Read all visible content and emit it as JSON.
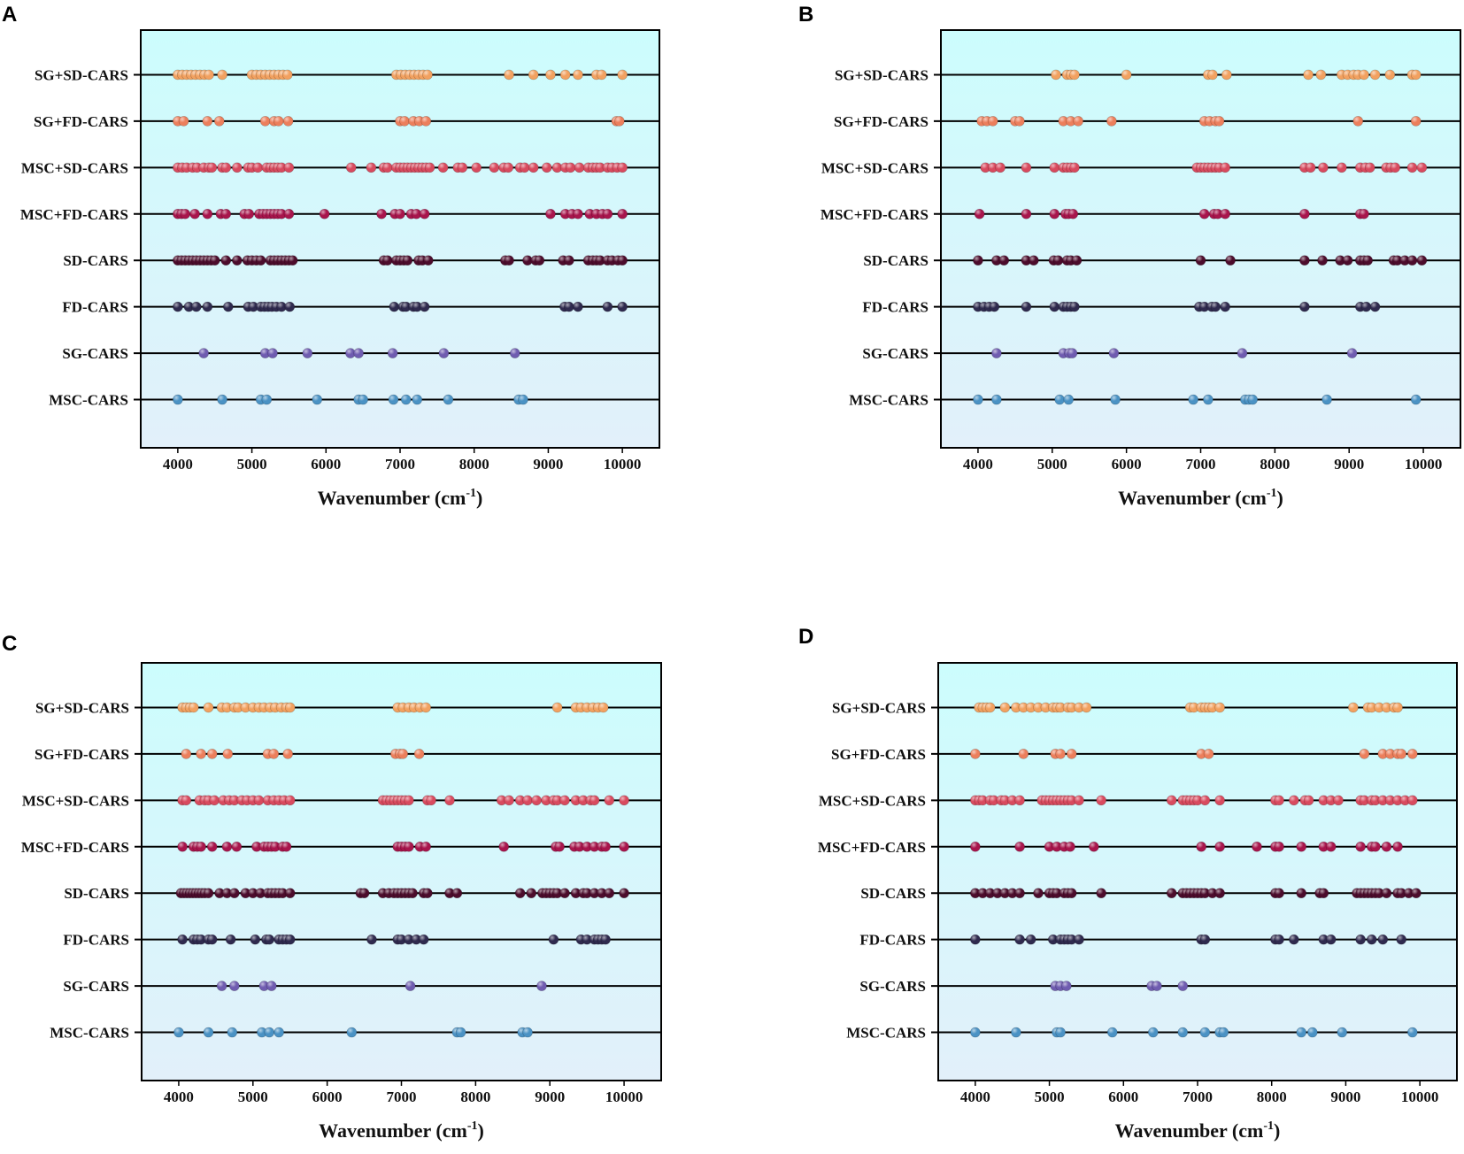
{
  "chart_data": {
    "type": "scatter",
    "xlabel": "Wavenumber (cm-1)",
    "xlabel_main": "Wavenumber (cm",
    "xlabel_sup": "-1",
    "xlabel_close": ")",
    "xlim": [
      3500,
      10500
    ],
    "xticks": [
      "4000",
      "5000",
      "6000",
      "7000",
      "8000",
      "9000",
      "10000"
    ],
    "rows": [
      "SG+SD-CARS",
      "SG+FD-CARS",
      "MSC+SD-CARS",
      "MSC+FD-CARS",
      "SD-CARS",
      "FD-CARS",
      "SG-CARS",
      "MSC-CARS"
    ],
    "colors": [
      "#f2a160",
      "#ec7f5c",
      "#d84a5e",
      "#a8154c",
      "#4c0c2c",
      "#2f2a4e",
      "#6f5cb0",
      "#4a92c4"
    ],
    "background": {
      "top": "#ccfdfd",
      "bottom": "#e2f0fa"
    },
    "panels": [
      {
        "label": "A",
        "series": [
          [
            4000,
            4060,
            4120,
            4180,
            4240,
            4300,
            4360,
            4420,
            4600,
            5000,
            5060,
            5120,
            5180,
            5240,
            5300,
            5360,
            5420,
            5480,
            6950,
            7010,
            7070,
            7130,
            7190,
            7250,
            7310,
            7370,
            8470,
            8800,
            9030,
            9230,
            9400,
            9650,
            9720,
            10000
          ],
          [
            4000,
            4080,
            4400,
            4560,
            5180,
            5300,
            5360,
            5490,
            7000,
            7060,
            7180,
            7260,
            7350,
            9920,
            9960
          ],
          [
            4000,
            4060,
            4120,
            4200,
            4260,
            4350,
            4420,
            4460,
            4600,
            4650,
            4800,
            4950,
            5000,
            5080,
            5200,
            5250,
            5300,
            5350,
            5400,
            5500,
            6340,
            6610,
            6780,
            6830,
            6950,
            7000,
            7050,
            7100,
            7150,
            7200,
            7250,
            7300,
            7350,
            7400,
            7580,
            7780,
            7840,
            8030,
            8270,
            8400,
            8460,
            8620,
            8680,
            8800,
            8980,
            9120,
            9230,
            9300,
            9420,
            9540,
            9600,
            9650,
            9700,
            9800,
            9860,
            9930,
            10000
          ],
          [
            4000,
            4050,
            4100,
            4230,
            4400,
            4580,
            4650,
            4900,
            4960,
            5100,
            5150,
            5200,
            5250,
            5300,
            5350,
            5400,
            5500,
            5980,
            6750,
            6930,
            7000,
            7150,
            7220,
            7330,
            9030,
            9230,
            9320,
            9400,
            9560,
            9650,
            9730,
            9800,
            10000
          ],
          [
            4000,
            4050,
            4100,
            4150,
            4200,
            4250,
            4300,
            4350,
            4400,
            4450,
            4500,
            4650,
            4800,
            4940,
            5000,
            5060,
            5120,
            5250,
            5300,
            5350,
            5400,
            5450,
            5500,
            5550,
            6780,
            6830,
            6950,
            7000,
            7050,
            7100,
            7250,
            7300,
            7380,
            8420,
            8470,
            8720,
            8830,
            8880,
            9200,
            9280,
            9540,
            9600,
            9650,
            9700,
            9800,
            9860,
            9940,
            10000
          ],
          [
            4000,
            4150,
            4250,
            4400,
            4680,
            4950,
            5020,
            5120,
            5170,
            5220,
            5270,
            5330,
            5400,
            5510,
            6920,
            7040,
            7080,
            7180,
            7230,
            7330,
            9220,
            9280,
            9400,
            9800,
            10000
          ],
          [
            4350,
            5180,
            5280,
            5750,
            6330,
            6440,
            6900,
            7590,
            8550
          ],
          [
            4000,
            4600,
            5120,
            5200,
            5880,
            6440,
            6500,
            6910,
            7080,
            7230,
            7650,
            8600,
            8660
          ]
        ]
      },
      {
        "label": "B",
        "series": [
          [
            5050,
            5200,
            5250,
            5300,
            6000,
            7100,
            7160,
            7350,
            8450,
            8620,
            8900,
            8980,
            9060,
            9120,
            9200,
            9350,
            9550,
            9850,
            9900
          ],
          [
            4050,
            4120,
            4200,
            4500,
            4560,
            5150,
            5250,
            5350,
            5800,
            7050,
            7120,
            7200,
            7250,
            9120,
            9900
          ],
          [
            4100,
            4200,
            4300,
            4650,
            5030,
            5150,
            5200,
            5250,
            5300,
            6950,
            7000,
            7050,
            7100,
            7150,
            7200,
            7250,
            7330,
            8400,
            8480,
            8650,
            8900,
            9150,
            9220,
            9280,
            9500,
            9560,
            9620,
            9850,
            9980
          ],
          [
            4020,
            4650,
            5030,
            5180,
            5220,
            5280,
            7050,
            7180,
            7230,
            7330,
            8400,
            9150,
            9200
          ],
          [
            4000,
            4250,
            4350,
            4650,
            4750,
            5020,
            5080,
            5200,
            5250,
            5330,
            7000,
            7400,
            8400,
            8640,
            8880,
            8980,
            9150,
            9200,
            9250,
            9600,
            9650,
            9750,
            9850,
            9980
          ],
          [
            4000,
            4080,
            4150,
            4220,
            4650,
            5030,
            5150,
            5200,
            5250,
            5300,
            6980,
            7050,
            7150,
            7200,
            7330,
            8400,
            9150,
            9230,
            9350
          ],
          [
            4250,
            5150,
            5230,
            5270,
            5830,
            7560,
            9040
          ],
          [
            4000,
            4250,
            5100,
            5220,
            5850,
            6900,
            7100,
            7600,
            7650,
            7700,
            8700,
            9900
          ]
        ]
      },
      {
        "label": "C",
        "series": [
          [
            4050,
            4100,
            4150,
            4200,
            4400,
            4580,
            4650,
            4750,
            4800,
            4900,
            5000,
            5080,
            5150,
            5230,
            5300,
            5380,
            5450,
            5500,
            6950,
            7020,
            7100,
            7170,
            7250,
            7330,
            9100,
            9350,
            9420,
            9500,
            9580,
            9650,
            9720
          ],
          [
            4100,
            4300,
            4450,
            4660,
            5200,
            5280,
            5470,
            6920,
            6980,
            7020,
            7240
          ],
          [
            4050,
            4100,
            4280,
            4350,
            4400,
            4480,
            4600,
            4680,
            4750,
            4850,
            4920,
            5000,
            5080,
            5200,
            5280,
            5350,
            5420,
            5500,
            6750,
            6800,
            6850,
            6900,
            6950,
            7000,
            7050,
            7100,
            7350,
            7400,
            7650,
            8350,
            8450,
            8600,
            8700,
            8820,
            8950,
            9050,
            9100,
            9200,
            9350,
            9450,
            9550,
            9600,
            9800,
            10000
          ],
          [
            4050,
            4200,
            4250,
            4300,
            4450,
            4650,
            4780,
            5050,
            5150,
            5200,
            5250,
            5300,
            5400,
            5450,
            6950,
            7000,
            7050,
            7100,
            7250,
            7330,
            8380,
            9080,
            9130,
            9330,
            9400,
            9500,
            9600,
            9700,
            9750,
            10000
          ],
          [
            4030,
            4070,
            4110,
            4150,
            4190,
            4230,
            4270,
            4310,
            4350,
            4400,
            4550,
            4650,
            4750,
            4900,
            5000,
            5100,
            5200,
            5250,
            5300,
            5350,
            5400,
            5500,
            6450,
            6500,
            6750,
            6830,
            6900,
            6950,
            7000,
            7050,
            7100,
            7150,
            7300,
            7350,
            7650,
            7750,
            8600,
            8750,
            8900,
            8950,
            9000,
            9050,
            9100,
            9200,
            9350,
            9450,
            9500,
            9600,
            9700,
            9800,
            10000
          ],
          [
            4050,
            4200,
            4250,
            4300,
            4400,
            4450,
            4700,
            5030,
            5180,
            5220,
            5350,
            5400,
            5450,
            5500,
            6600,
            6950,
            7000,
            7100,
            7200,
            7300,
            9050,
            9420,
            9500,
            9600,
            9650,
            9700,
            9750
          ],
          [
            4580,
            4750,
            5150,
            5250,
            7120,
            8890
          ],
          [
            4000,
            4400,
            4720,
            5120,
            5220,
            5350,
            6330,
            7750,
            7800,
            8630,
            8700
          ]
        ]
      },
      {
        "label": "D",
        "series": [
          [
            4050,
            4100,
            4150,
            4200,
            4400,
            4550,
            4650,
            4750,
            4850,
            4950,
            5050,
            5100,
            5150,
            5250,
            5300,
            5400,
            5500,
            6900,
            6950,
            7050,
            7100,
            7150,
            7200,
            7300,
            9100,
            9300,
            9350,
            9450,
            9550,
            9650,
            9700
          ],
          [
            4000,
            4650,
            5080,
            5150,
            5300,
            7050,
            7150,
            9250,
            9500,
            9600,
            9700,
            9750,
            9900
          ],
          [
            4000,
            4050,
            4100,
            4200,
            4250,
            4350,
            4400,
            4500,
            4600,
            4900,
            4950,
            5000,
            5050,
            5100,
            5150,
            5200,
            5250,
            5300,
            5400,
            5700,
            6650,
            6800,
            6850,
            6900,
            6950,
            7000,
            7100,
            7300,
            8050,
            8100,
            8300,
            8450,
            8500,
            8700,
            8800,
            8900,
            9200,
            9250,
            9350,
            9400,
            9500,
            9600,
            9700,
            9800,
            9900
          ],
          [
            4000,
            4600,
            5000,
            5100,
            5200,
            5280,
            5600,
            7050,
            7300,
            7800,
            8050,
            8100,
            8400,
            8700,
            8800,
            9200,
            9350,
            9400,
            9550,
            9700
          ],
          [
            4000,
            4100,
            4200,
            4300,
            4400,
            4500,
            4600,
            4850,
            5000,
            5050,
            5100,
            5200,
            5250,
            5300,
            5700,
            6650,
            6800,
            6850,
            6900,
            6950,
            7000,
            7050,
            7100,
            7200,
            7300,
            8050,
            8100,
            8400,
            8650,
            8700,
            9150,
            9200,
            9250,
            9300,
            9350,
            9400,
            9450,
            9550,
            9700,
            9750,
            9850,
            9950
          ],
          [
            4000,
            4600,
            4750,
            5050,
            5150,
            5200,
            5250,
            5300,
            5400,
            7050,
            7100,
            8050,
            8100,
            8300,
            8700,
            8800,
            9200,
            9350,
            9500,
            9750
          ],
          [
            5080,
            5150,
            5230,
            6380,
            6450,
            6800
          ],
          [
            4000,
            4550,
            5100,
            5150,
            5850,
            6400,
            6800,
            7100,
            7300,
            7350,
            8400,
            8550,
            8950,
            9900
          ]
        ]
      }
    ]
  }
}
